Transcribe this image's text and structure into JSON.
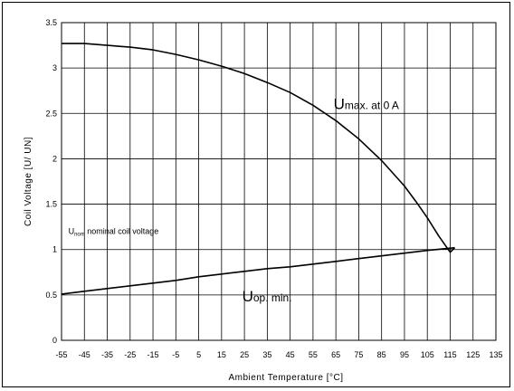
{
  "chart_data": {
    "type": "line",
    "title": "",
    "xlabel": "Ambient Temperature [°C]",
    "ylabel": "Coil Voltage [U/ UN]",
    "xlim": [
      -55,
      135
    ],
    "ylim": [
      0,
      3.5
    ],
    "x_ticks": [
      -55,
      -45,
      -35,
      -25,
      -15,
      -5,
      5,
      15,
      25,
      35,
      45,
      55,
      65,
      75,
      85,
      95,
      105,
      115,
      125,
      135
    ],
    "y_ticks": [
      0,
      0.5,
      1,
      1.5,
      2,
      2.5,
      3,
      3.5
    ],
    "x_tick_labels": [
      "-55",
      "-45",
      "-35",
      "-25",
      "-15",
      "-5",
      "5",
      "15",
      "25",
      "35",
      "45",
      "55",
      "65",
      "75",
      "85",
      "95",
      "105",
      "115",
      "125",
      "135"
    ],
    "y_tick_labels": [
      "0",
      "0.5",
      "1",
      "1.5",
      "2",
      "2.5",
      "3",
      "3.5"
    ],
    "grid": true,
    "series": [
      {
        "label_main": "U",
        "label_sub": "max. at 0 A",
        "x": [
          -55,
          -45,
          -35,
          -25,
          -15,
          -5,
          5,
          15,
          25,
          35,
          45,
          55,
          65,
          75,
          85,
          95,
          100,
          105,
          110,
          115,
          117
        ],
        "y": [
          3.27,
          3.27,
          3.25,
          3.23,
          3.2,
          3.15,
          3.09,
          3.02,
          2.94,
          2.84,
          2.73,
          2.59,
          2.42,
          2.22,
          1.98,
          1.7,
          1.53,
          1.35,
          1.15,
          0.97,
          1.02
        ]
      },
      {
        "label_main": "U",
        "label_sub": "op. min.",
        "x": [
          -55,
          -45,
          -35,
          -25,
          -15,
          -5,
          5,
          15,
          25,
          35,
          45,
          55,
          65,
          75,
          85,
          95,
          105,
          117
        ],
        "y": [
          0.51,
          0.54,
          0.57,
          0.6,
          0.63,
          0.66,
          0.7,
          0.73,
          0.76,
          0.79,
          0.81,
          0.84,
          0.87,
          0.9,
          0.93,
          0.96,
          0.99,
          1.02
        ]
      }
    ],
    "annotation": {
      "main": "U",
      "sub": "nom",
      "rest": " nominal coil voltage"
    }
  }
}
